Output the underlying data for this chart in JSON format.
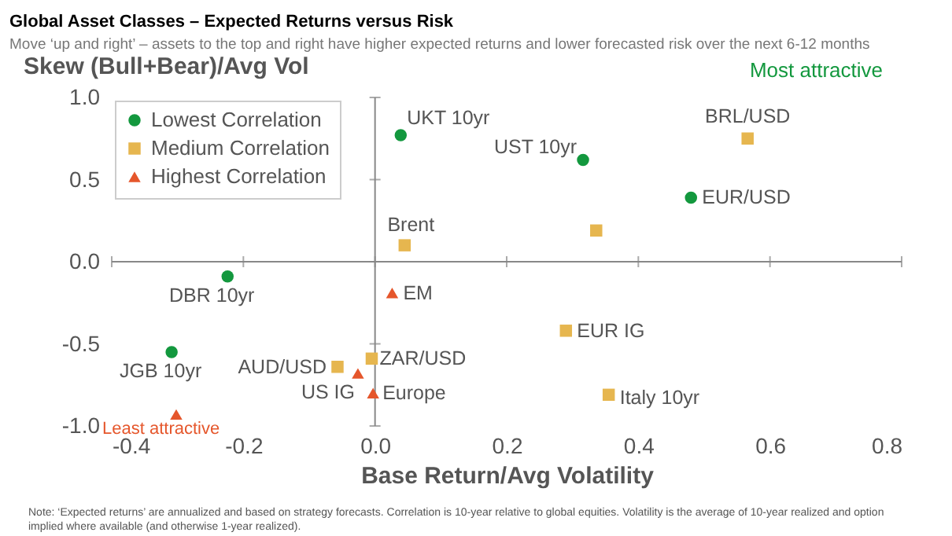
{
  "chart_data": {
    "type": "scatter",
    "title": "Global Asset Classes – Expected Returns versus Risk",
    "subtitle": "Move ‘up and right’ – assets to the top and right have higher expected returns and lower forecasted risk over the next 6-12 months",
    "xlabel": "Base Return/Avg Volatility",
    "ylabel": "Skew (Bull+Bear)/Avg Vol",
    "annotations": [
      "Most attractive",
      "Least attractive",
      "Note: ‘Expected returns’ are annualized and based on strategy forecasts. Correlation is 10-year relative to global equities. Volatility is the average of 10-year realized and option implied where available (and otherwise 1-year realized)."
    ],
    "series": [
      {
        "name": "Lowest Correlation",
        "color": "#13983e",
        "marker": "circle",
        "x": [
          0.039,
          0.316,
          0.48,
          -0.224,
          -0.309
        ],
        "values": [
          0.77,
          0.62,
          0.39,
          -0.09,
          -0.55
        ],
        "value_labels": [
          "UKT 10yr",
          "UST 10yr",
          "EUR/USD",
          "DBR 10yr",
          "JGB 10yr"
        ]
      },
      {
        "name": "Medium Correlation",
        "color": "#e6b64f",
        "marker": "square",
        "x": [
          0.566,
          0.336,
          0.045,
          0.29,
          0.355,
          -0.057,
          -0.005
        ],
        "values": [
          0.75,
          0.19,
          0.1,
          -0.42,
          -0.81,
          -0.64,
          -0.59
        ],
        "value_labels": [
          "BRL/USD",
          null,
          "Brent",
          "EUR IG",
          "Italy 10yr",
          "AUD/USD",
          "ZAR/USD"
        ]
      },
      {
        "name": "Highest Correlation",
        "color": "#e5562b",
        "marker": "triangle",
        "x": [
          0.026,
          -0.026,
          -0.003,
          -0.302
        ],
        "values": [
          -0.19,
          -0.68,
          -0.8,
          -0.93
        ],
        "value_labels": [
          "EM",
          "US IG",
          "Europe",
          null
        ]
      }
    ],
    "xlim": [
      -0.4,
      0.8
    ],
    "xticks": [
      {
        "value": -0.4,
        "label": "-0.4"
      },
      {
        "value": -0.2,
        "label": "-0.2"
      },
      {
        "value": 0,
        "label": "0.0"
      },
      {
        "value": 0.2,
        "label": "0.2"
      },
      {
        "value": 0.4,
        "label": "0.4"
      },
      {
        "value": 0.6,
        "label": "0.6"
      },
      {
        "value": 0.8,
        "label": "0.8"
      }
    ],
    "ylim": [
      -1.0,
      1.0
    ],
    "yticks": [
      {
        "value": -1,
        "label": "-1.0"
      },
      {
        "value": -0.5,
        "label": "-0.5"
      },
      {
        "value": 0,
        "label": "0.0"
      },
      {
        "value": 0.5,
        "label": "0.5"
      },
      {
        "value": 1,
        "label": "1.0"
      }
    ],
    "legend": "top left"
  }
}
